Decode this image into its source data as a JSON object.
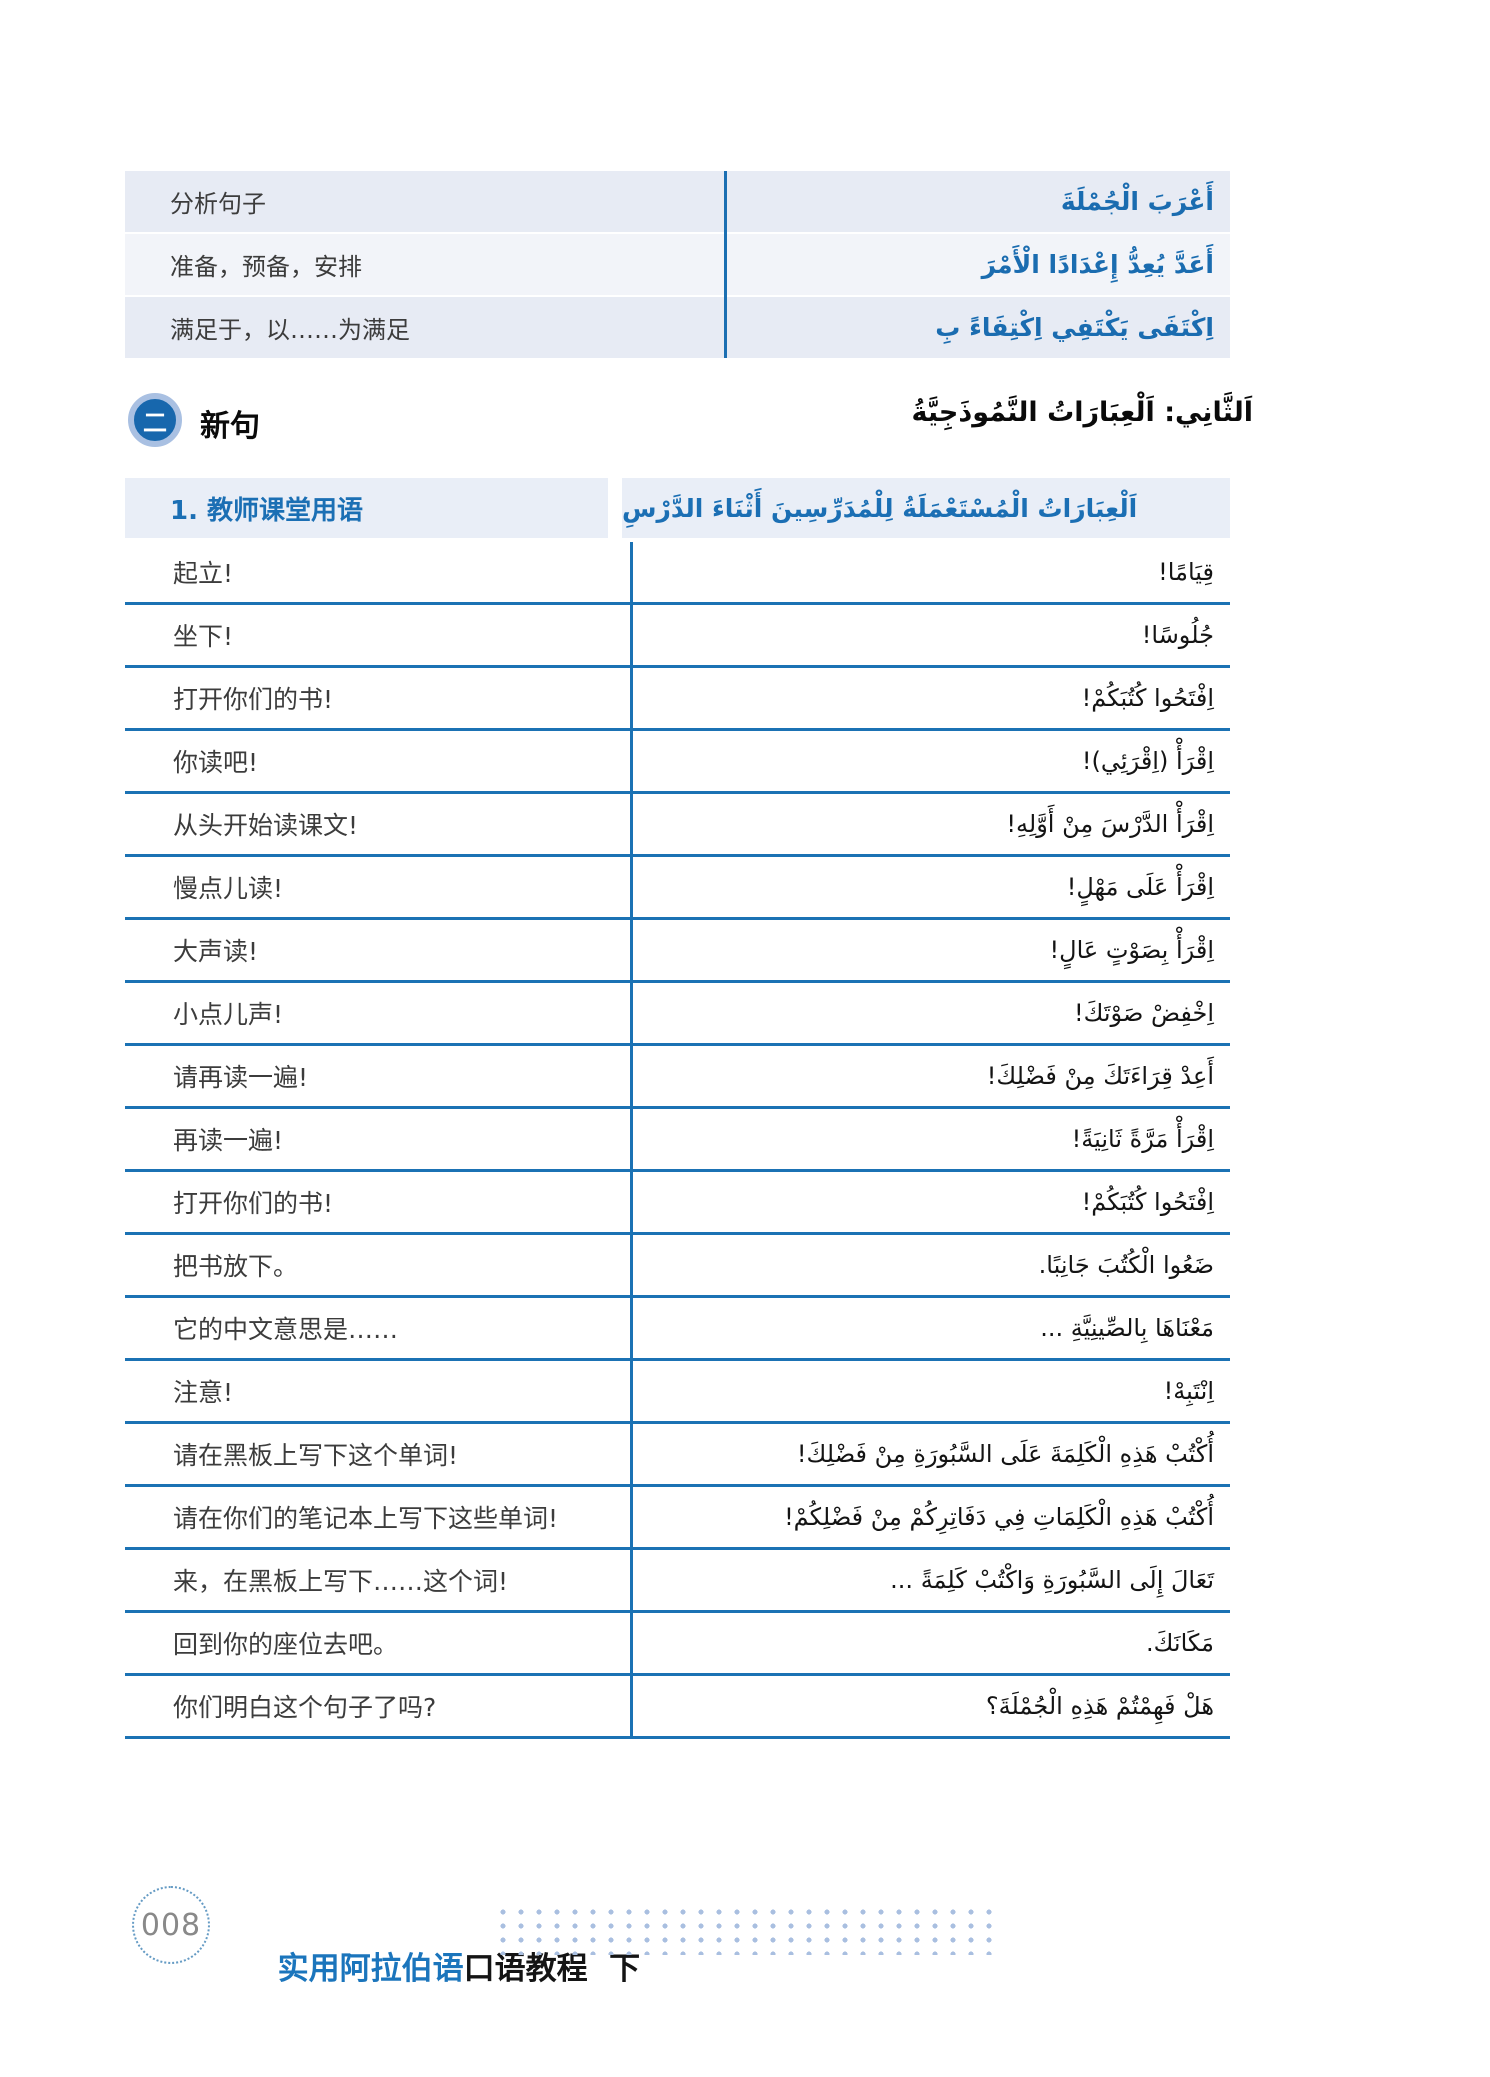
{
  "appearance": {
    "accent_blue": "#1b72b4",
    "arabic_blue": "#1a6cb0",
    "row_shade_dark": "#e7ebf4",
    "row_shade_light": "#f2f4f9",
    "header_shade": "#e9eef7",
    "footer_blue": "#1b75bc",
    "dot_color": "#a9bfe0"
  },
  "vocab_table": {
    "rows": [
      {
        "zh": "分析句子",
        "ar": "أَعْرَبَ الْجُمْلَةَ"
      },
      {
        "zh": "准备，预备，安排",
        "ar": "أَعَدَّ يُعِدُّ إِعْدَادًا الْأَمْرَ"
      },
      {
        "zh": "满足于，以……为满足",
        "ar": "اِكْتَفَى يَكْتَفِي اِكْتِفَاءً بِ"
      }
    ]
  },
  "section": {
    "icon_char": "二",
    "title_zh": "新句",
    "title_ar": "اَلثَّانِي: اَلْعِبَارَاتُ النَّمُوذَجِيَّةُ"
  },
  "phrases": {
    "header_zh": "1. 教师课堂用语",
    "header_ar": "اَلْعِبَارَاتُ الْمُسْتَعْمَلَةُ لِلْمُدَرِّسِينَ أَثْنَاءَ الدَّرْسِ",
    "rows": [
      {
        "zh": "起立!",
        "ar": "قِيَامًا!"
      },
      {
        "zh": "坐下!",
        "ar": "جُلُوسًا!"
      },
      {
        "zh": "打开你们的书!",
        "ar": "اِفْتَحُوا كُتُبَكُمْ!"
      },
      {
        "zh": "你读吧!",
        "ar": "اِقْرَأْ (اِقْرَئِي)!"
      },
      {
        "zh": "从头开始读课文!",
        "ar": "اِقْرَأْ الدَّرْسَ مِنْ أَوَّلِهِ!"
      },
      {
        "zh": "慢点儿读!",
        "ar": "اِقْرَأْ عَلَى مَهْلٍ!"
      },
      {
        "zh": "大声读!",
        "ar": "اِقْرَأْ بِصَوْتٍ عَالٍ!"
      },
      {
        "zh": "小点儿声!",
        "ar": "اِخْفِضْ صَوْتَكَ!"
      },
      {
        "zh": "请再读一遍!",
        "ar": "أَعِدْ قِرَاءَتَكَ مِنْ فَضْلِكَ!"
      },
      {
        "zh": "再读一遍!",
        "ar": "اِقْرَأْ مَرَّةً ثَانِيَةً!"
      },
      {
        "zh": "打开你们的书!",
        "ar": "اِفْتَحُوا كُتُبَكُمْ!"
      },
      {
        "zh": "把书放下。",
        "ar": "ضَعُوا الْكُتُبَ جَانِبًا."
      },
      {
        "zh": "它的中文意思是……",
        "ar": "مَعْنَاهَا بِالصِّينِيَّةِ ..."
      },
      {
        "zh": "注意!",
        "ar": "اِنْتَبِهْ!"
      },
      {
        "zh": "请在黑板上写下这个单词!",
        "ar": "أُكْتُبْ هَذِهِ الْكَلِمَةَ عَلَى السَّبُورَةِ مِنْ فَضْلِكَ!"
      },
      {
        "zh": "请在你们的笔记本上写下这些单词!",
        "ar": "أُكْتُبْ هَذِهِ الْكَلِمَاتِ فِي دَفَاتِرِكُمْ مِنْ فَضْلِكُمْ!"
      },
      {
        "zh": "来，在黑板上写下……这个词!",
        "ar": "تَعَالَ إِلَى السَّبُورَةِ وَاكْتُبْ كَلِمَةً ..."
      },
      {
        "zh": "回到你的座位去吧。",
        "ar": "مَكَانَكَ."
      },
      {
        "zh": "你们明白这个句子了吗?",
        "ar": "هَلْ فَهِمْتُمْ هَذِهِ الْجُمْلَةَ؟"
      }
    ]
  },
  "footer": {
    "page_number": "008",
    "title_blue": "实用阿拉伯语",
    "title_black": "口语教程",
    "volume": "  下"
  }
}
